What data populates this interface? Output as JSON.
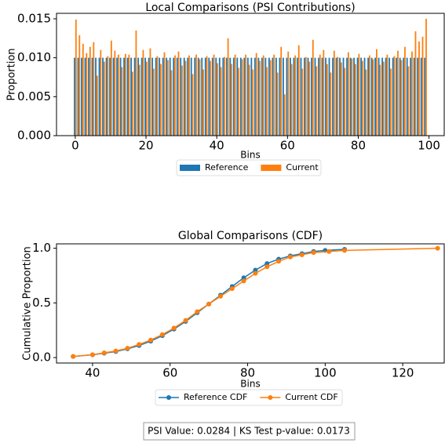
{
  "chart_data": [
    {
      "type": "bar",
      "title": "Local Comparisons (PSI Contributions)",
      "x_label": "Bins",
      "y_label": "Proportion",
      "x": [
        0,
        1,
        2,
        3,
        4,
        5,
        6,
        7,
        8,
        9,
        10,
        11,
        12,
        13,
        14,
        15,
        16,
        17,
        18,
        19,
        20,
        21,
        22,
        23,
        24,
        25,
        26,
        27,
        28,
        29,
        30,
        31,
        32,
        33,
        34,
        35,
        36,
        37,
        38,
        39,
        40,
        41,
        42,
        43,
        44,
        45,
        46,
        47,
        48,
        49,
        50,
        51,
        52,
        53,
        54,
        55,
        56,
        57,
        58,
        59,
        60,
        61,
        62,
        63,
        64,
        65,
        66,
        67,
        68,
        69,
        70,
        71,
        72,
        73,
        74,
        75,
        76,
        77,
        78,
        79,
        80,
        81,
        82,
        83,
        84,
        85,
        86,
        87,
        88,
        89,
        90,
        91,
        92,
        93,
        94,
        95,
        96,
        97,
        98,
        99
      ],
      "series": [
        {
          "name": "Reference",
          "color": "#1f77b4",
          "values": [
            0.01,
            0.01,
            0.01,
            0.01,
            0.01,
            0.01,
            0.01,
            0.01,
            0.01,
            0.01,
            0.01,
            0.01,
            0.01,
            0.01,
            0.01,
            0.01,
            0.01,
            0.01,
            0.01,
            0.01,
            0.01,
            0.01,
            0.01,
            0.01,
            0.01,
            0.01,
            0.01,
            0.01,
            0.01,
            0.01,
            0.01,
            0.01,
            0.01,
            0.01,
            0.01,
            0.01,
            0.01,
            0.01,
            0.01,
            0.01,
            0.01,
            0.01,
            0.01,
            0.01,
            0.01,
            0.01,
            0.01,
            0.01,
            0.01,
            0.01,
            0.01,
            0.01,
            0.01,
            0.01,
            0.01,
            0.01,
            0.01,
            0.01,
            0.01,
            0.01,
            0.01,
            0.01,
            0.01,
            0.01,
            0.01,
            0.01,
            0.01,
            0.01,
            0.01,
            0.01,
            0.01,
            0.01,
            0.01,
            0.01,
            0.01,
            0.01,
            0.01,
            0.01,
            0.01,
            0.01,
            0.01,
            0.01,
            0.01,
            0.01,
            0.01,
            0.01,
            0.01,
            0.01,
            0.01,
            0.01,
            0.01,
            0.01,
            0.01,
            0.01,
            0.01,
            0.01,
            0.01,
            0.01,
            0.01,
            0.01
          ]
        },
        {
          "name": "Current",
          "color": "#ff7f0e",
          "values": [
            0.0149,
            0.0129,
            0.0118,
            0.0106,
            0.0114,
            0.012,
            0.0077,
            0.011,
            0.0095,
            0.0102,
            0.0122,
            0.0109,
            0.0104,
            0.0088,
            0.0105,
            0.0104,
            0.0082,
            0.0135,
            0.0091,
            0.011,
            0.0095,
            0.0112,
            0.0086,
            0.0102,
            0.0092,
            0.0107,
            0.0097,
            0.0084,
            0.0103,
            0.0108,
            0.009,
            0.0096,
            0.0103,
            0.0079,
            0.0104,
            0.0098,
            0.0085,
            0.0102,
            0.0096,
            0.0104,
            0.0093,
            0.0088,
            0.0101,
            0.0125,
            0.0092,
            0.0104,
            0.0087,
            0.0098,
            0.0104,
            0.0091,
            0.0085,
            0.0106,
            0.0096,
            0.0103,
            0.0088,
            0.0097,
            0.0104,
            0.0081,
            0.0114,
            0.0053,
            0.0108,
            0.0092,
            0.0103,
            0.0116,
            0.0086,
            0.0101,
            0.0095,
            0.0123,
            0.0089,
            0.0104,
            0.011,
            0.0092,
            0.0081,
            0.0109,
            0.0101,
            0.0094,
            0.0087,
            0.0107,
            0.0099,
            0.0092,
            0.0105,
            0.0096,
            0.0085,
            0.0103,
            0.0098,
            0.0111,
            0.0091,
            0.0095,
            0.0104,
            0.0086,
            0.0102,
            0.0109,
            0.0097,
            0.0114,
            0.0089,
            0.0108,
            0.0134,
            0.0121,
            0.0127,
            0.015
          ]
        }
      ],
      "xlim": [
        -5.3,
        104.3
      ],
      "xticks": [
        0,
        20,
        40,
        60,
        80,
        100
      ],
      "ylim": [
        0,
        0.0157
      ],
      "yticks": [
        {
          "value": 0,
          "label": "0.000"
        },
        {
          "value": 0.005,
          "label": "0.005"
        },
        {
          "value": 0.01,
          "label": "0.010"
        },
        {
          "value": 0.015,
          "label": "0.015"
        }
      ]
    },
    {
      "type": "line",
      "title": "Global Comparisons (CDF)",
      "x_label": "Bins",
      "y_label": "Cumulative Proportion",
      "series": [
        {
          "name": "Reference CDF",
          "color": "#1f77b4",
          "x": [
            35,
            40,
            43,
            46,
            49,
            52,
            55,
            58,
            61,
            64,
            67,
            70,
            73,
            76,
            79,
            82,
            85,
            88,
            91,
            94,
            97,
            100,
            105
          ],
          "values": [
            0.01,
            0.025,
            0.04,
            0.055,
            0.08,
            0.11,
            0.15,
            0.2,
            0.26,
            0.33,
            0.41,
            0.49,
            0.57,
            0.65,
            0.73,
            0.8,
            0.86,
            0.9,
            0.93,
            0.95,
            0.97,
            0.98,
            0.99
          ]
        },
        {
          "name": "Current CDF",
          "color": "#ff7f0e",
          "x": [
            35,
            40,
            43,
            46,
            49,
            52,
            55,
            58,
            61,
            64,
            67,
            70,
            73,
            76,
            79,
            82,
            85,
            88,
            91,
            94,
            97,
            101,
            105,
            129
          ],
          "values": [
            0.01,
            0.026,
            0.043,
            0.06,
            0.085,
            0.12,
            0.16,
            0.21,
            0.27,
            0.34,
            0.42,
            0.49,
            0.56,
            0.63,
            0.7,
            0.77,
            0.83,
            0.88,
            0.92,
            0.94,
            0.96,
            0.97,
            0.98,
            1.0
          ]
        }
      ],
      "xlim": [
        30.7,
        130.7
      ],
      "xticks": [
        40,
        60,
        80,
        100,
        120
      ],
      "ylim": [
        -0.05,
        1.04
      ],
      "yticks": [
        {
          "value": 0,
          "label": "0.0"
        },
        {
          "value": 0.5,
          "label": "0.5"
        },
        {
          "value": 1,
          "label": "1.0"
        }
      ]
    }
  ],
  "footer": "PSI Value: 0.0284 | KS Test p-value: 0.0173"
}
